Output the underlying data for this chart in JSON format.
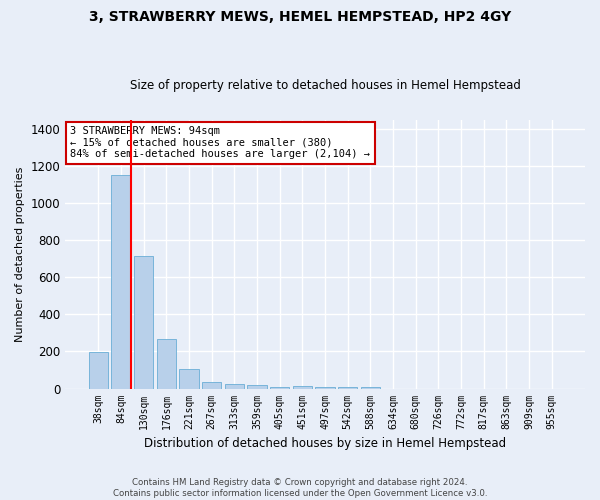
{
  "title1": "3, STRAWBERRY MEWS, HEMEL HEMPSTEAD, HP2 4GY",
  "title2": "Size of property relative to detached houses in Hemel Hempstead",
  "xlabel": "Distribution of detached houses by size in Hemel Hempstead",
  "ylabel": "Number of detached properties",
  "categories": [
    "38sqm",
    "84sqm",
    "130sqm",
    "176sqm",
    "221sqm",
    "267sqm",
    "313sqm",
    "359sqm",
    "405sqm",
    "451sqm",
    "497sqm",
    "542sqm",
    "588sqm",
    "634sqm",
    "680sqm",
    "726sqm",
    "772sqm",
    "817sqm",
    "863sqm",
    "909sqm",
    "955sqm"
  ],
  "values": [
    195,
    1150,
    715,
    265,
    108,
    35,
    27,
    20,
    10,
    13,
    10,
    10,
    10,
    0,
    0,
    0,
    0,
    0,
    0,
    0,
    0
  ],
  "bar_color": "#b8d0ea",
  "bar_edge_color": "#6aaed6",
  "red_line_x": 1.45,
  "annotation_text": "3 STRAWBERRY MEWS: 94sqm\n← 15% of detached houses are smaller (380)\n84% of semi-detached houses are larger (2,104) →",
  "annotation_box_color": "#ffffff",
  "annotation_box_edge_color": "#cc0000",
  "footer1": "Contains HM Land Registry data © Crown copyright and database right 2024.",
  "footer2": "Contains public sector information licensed under the Open Government Licence v3.0.",
  "bg_color": "#e8eef8",
  "grid_color": "#ffffff",
  "ylim": [
    0,
    1450
  ],
  "yticks": [
    0,
    200,
    400,
    600,
    800,
    1000,
    1200,
    1400
  ]
}
